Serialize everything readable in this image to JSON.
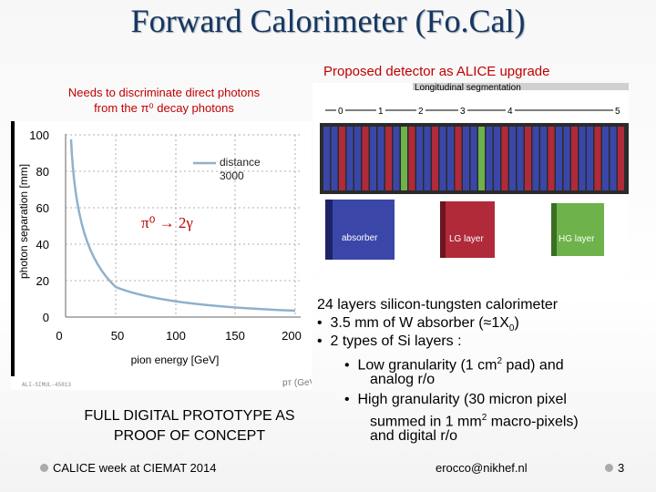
{
  "slide": {
    "title": "Forward Calorimeter (Fo.Cal)",
    "proposed": "Proposed detector as ALICE upgrade",
    "needs_line1": "Needs to discriminate direct photons",
    "needs_line2": "from the π⁰ decay photons",
    "full_line1": "FULL DIGITAL PROTOTYPE AS",
    "full_line2": "PROOF OF CONCEPT"
  },
  "plot": {
    "ylabel": "photon separation [mm]",
    "xlabel": "pion energy [GeV]",
    "legend_line1": "distance",
    "legend_line2": "3000",
    "annotation": "π⁰ → 2γ",
    "figure_id": "ALI-SIMUL-45813",
    "clipped_label": "pᴛ (GeV)",
    "x_ticks": [
      "0",
      "50",
      "100",
      "150",
      "200"
    ],
    "y_ticks": [
      "0",
      "20",
      "40",
      "60",
      "80",
      "100"
    ],
    "curve_color": "#8fb1cc"
  },
  "detector": {
    "header": "Longitudinal segmentation",
    "segments": [
      "0",
      "1",
      "2",
      "3",
      "4",
      "5"
    ],
    "labels": [
      "absorber",
      "LG layer",
      "HG layer"
    ]
  },
  "description": {
    "line1": "24 layers silicon-tungsten calorimeter",
    "bullet1_pre": "3.5 mm of W absorber (≈1X",
    "bullet1_sub": "0",
    "bullet1_post": ")",
    "bullet2": "2 types of Si layers :",
    "sub1_pre": "Low granularity (1 cm",
    "sub1_sup": "2",
    "sub1_post": " pad) and",
    "sub1_line2": "analog r/o",
    "sub2_line1": "High granularity (30 micron pixel",
    "sub2_pre": "summed in 1 mm",
    "sub2_sup": "2",
    "sub2_post": " macro-pixels)",
    "sub2_line3": "and digital r/o",
    "bullet_char": "•"
  },
  "footer": {
    "left": "CALICE week at CIEMAT 2014",
    "center": "erocco@nikhef.nl",
    "page": "3"
  }
}
